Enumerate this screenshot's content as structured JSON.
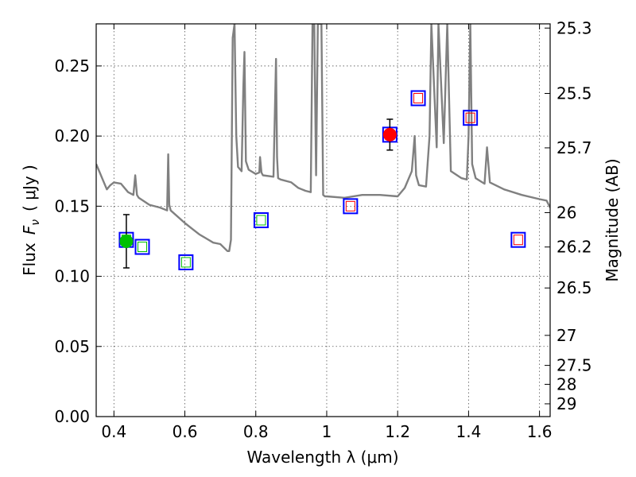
{
  "chart_data": {
    "type": "scatter",
    "xlabel": "Wavelength  λ (μm)",
    "ylabel": "Flux  F_ν  ( μJy )",
    "ylabel_parts": {
      "flux": "Flux",
      "symbol": "F",
      "subscript": "ν",
      "unit": "( μJy )"
    },
    "y2label": "Magnitude (AB)",
    "xlim": [
      0.35,
      1.63
    ],
    "ylim": [
      0.0,
      0.28
    ],
    "xticks": [
      {
        "value": 0.4,
        "label": "0.4"
      },
      {
        "value": 0.6,
        "label": "0.6"
      },
      {
        "value": 0.8,
        "label": "0.8"
      },
      {
        "value": 1.0,
        "label": "1"
      },
      {
        "value": 1.2,
        "label": "1.2"
      },
      {
        "value": 1.4,
        "label": "1.4"
      },
      {
        "value": 1.6,
        "label": "1.6"
      }
    ],
    "yticks": [
      {
        "value": 0.0,
        "label": "0.00"
      },
      {
        "value": 0.05,
        "label": "0.05"
      },
      {
        "value": 0.1,
        "label": "0.10"
      },
      {
        "value": 0.15,
        "label": "0.15"
      },
      {
        "value": 0.2,
        "label": "0.20"
      },
      {
        "value": 0.25,
        "label": "0.25"
      }
    ],
    "magnitude_ticks": [
      {
        "flux": 0.277,
        "label": "25.3"
      },
      {
        "flux": 0.2304,
        "label": "25.5"
      },
      {
        "flux": 0.1916,
        "label": "25.7"
      },
      {
        "flux": 0.1454,
        "label": "26"
      },
      {
        "flux": 0.1209,
        "label": "26.2"
      },
      {
        "flux": 0.0917,
        "label": "26.5"
      },
      {
        "flux": 0.0579,
        "label": "27"
      },
      {
        "flux": 0.0365,
        "label": "27.5"
      },
      {
        "flux": 0.023,
        "label": "28"
      },
      {
        "flux": 0.0091,
        "label": "29"
      }
    ],
    "grid": true,
    "colors": {
      "model": "#808080",
      "measured_blue": "#00c000",
      "measured_red": "#ff0000",
      "box_outer": "#0000ff",
      "inner_green": "#00c000",
      "inner_red": "#ff0000",
      "errorbar": "#000000"
    },
    "model_spectrum": {
      "name": "model SED",
      "x": [
        0.35,
        0.36,
        0.37,
        0.38,
        0.39,
        0.4,
        0.42,
        0.44,
        0.455,
        0.46,
        0.465,
        0.47,
        0.5,
        0.53,
        0.55,
        0.553,
        0.556,
        0.56,
        0.6,
        0.62,
        0.64,
        0.66,
        0.68,
        0.7,
        0.72,
        0.725,
        0.73,
        0.735,
        0.74,
        0.745,
        0.75,
        0.76,
        0.765,
        0.768,
        0.772,
        0.78,
        0.8,
        0.81,
        0.812,
        0.816,
        0.82,
        0.85,
        0.857,
        0.86,
        0.863,
        0.87,
        0.9,
        0.92,
        0.94,
        0.955,
        0.96,
        0.965,
        0.97,
        0.975,
        0.985,
        0.99,
        0.995,
        1.0,
        1.05,
        1.1,
        1.15,
        1.2,
        1.22,
        1.24,
        1.248,
        1.252,
        1.26,
        1.28,
        1.29,
        1.295,
        1.31,
        1.315,
        1.33,
        1.34,
        1.35,
        1.38,
        1.395,
        1.4,
        1.405,
        1.41,
        1.42,
        1.445,
        1.452,
        1.46,
        1.5,
        1.55,
        1.6,
        1.62,
        1.63
      ],
      "y": [
        0.18,
        0.174,
        0.168,
        0.162,
        0.165,
        0.167,
        0.166,
        0.16,
        0.158,
        0.172,
        0.158,
        0.156,
        0.151,
        0.149,
        0.147,
        0.187,
        0.151,
        0.147,
        0.138,
        0.134,
        0.13,
        0.127,
        0.124,
        0.123,
        0.118,
        0.118,
        0.126,
        0.27,
        0.28,
        0.2,
        0.178,
        0.175,
        0.235,
        0.26,
        0.182,
        0.176,
        0.173,
        0.174,
        0.185,
        0.174,
        0.172,
        0.171,
        0.255,
        0.185,
        0.17,
        0.169,
        0.167,
        0.163,
        0.161,
        0.16,
        0.28,
        0.28,
        0.172,
        0.28,
        0.28,
        0.158,
        0.157,
        0.157,
        0.156,
        0.158,
        0.158,
        0.157,
        0.163,
        0.175,
        0.2,
        0.172,
        0.165,
        0.164,
        0.2,
        0.28,
        0.192,
        0.28,
        0.195,
        0.28,
        0.175,
        0.17,
        0.169,
        0.2,
        0.28,
        0.18,
        0.17,
        0.166,
        0.192,
        0.167,
        0.162,
        0.158,
        0.155,
        0.154,
        0.149
      ]
    },
    "measured_points": [
      {
        "name": "measured-blue",
        "x": 0.435,
        "y": 0.125,
        "yerr": 0.019,
        "color_key": "measured_blue"
      },
      {
        "name": "measured-red",
        "x": 1.178,
        "y": 0.201,
        "yerr": 0.011,
        "color_key": "measured_red"
      }
    ],
    "model_photometry": [
      {
        "x": 0.435,
        "y": 0.126,
        "inner": "green"
      },
      {
        "x": 0.48,
        "y": 0.121,
        "inner": "green"
      },
      {
        "x": 0.603,
        "y": 0.11,
        "inner": "green"
      },
      {
        "x": 0.815,
        "y": 0.14,
        "inner": "green"
      },
      {
        "x": 1.067,
        "y": 0.15,
        "inner": "red"
      },
      {
        "x": 1.178,
        "y": 0.201,
        "inner": "red"
      },
      {
        "x": 1.258,
        "y": 0.227,
        "inner": "red"
      },
      {
        "x": 1.405,
        "y": 0.213,
        "inner": "red"
      },
      {
        "x": 1.54,
        "y": 0.126,
        "inner": "red"
      }
    ]
  }
}
